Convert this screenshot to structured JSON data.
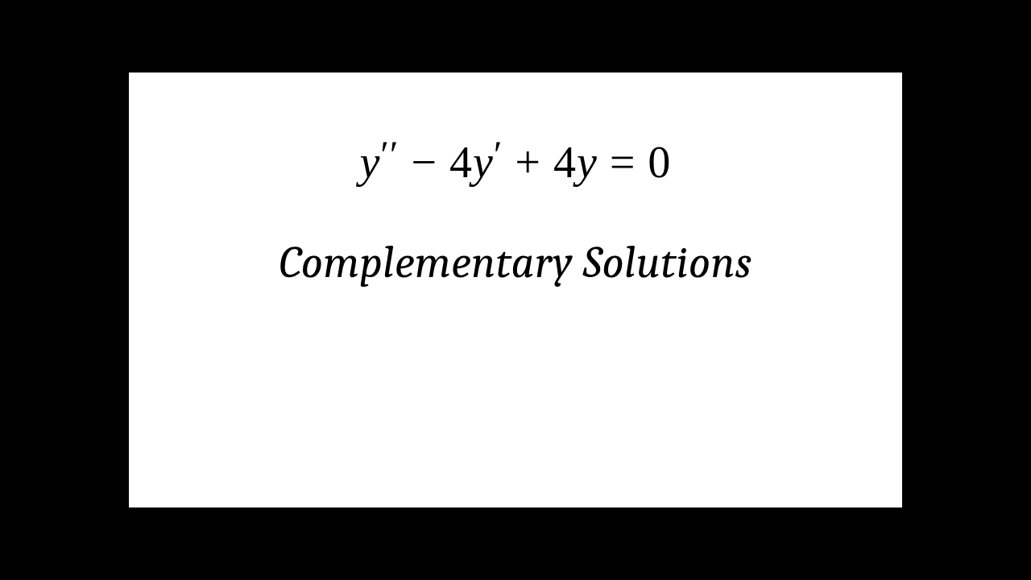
{
  "slide": {
    "equation_y1": "y",
    "equation_prime2": "′′",
    "equation_minus": " − 4",
    "equation_y2": "y",
    "equation_prime1": "′",
    "equation_plus": " + 4",
    "equation_y3": "y",
    "equation_eq": " = 0",
    "subtitle": "Complementary Solutions",
    "background_color": "#000000",
    "content_background": "#ffffff",
    "text_color": "#000000",
    "equation_fontsize": 56,
    "subtitle_fontsize": 56
  }
}
